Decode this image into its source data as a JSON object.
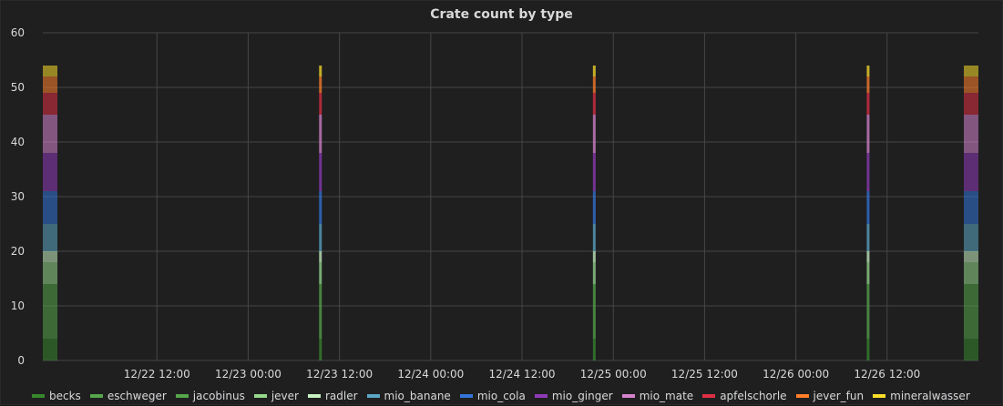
{
  "chart_data": {
    "type": "bar",
    "stacked": true,
    "title": "Crate count by type",
    "xlabel": "",
    "ylabel": "",
    "ylim": [
      0,
      60
    ],
    "y_ticks": [
      0,
      10,
      20,
      30,
      40,
      50,
      60
    ],
    "xlim": [
      "2020-12-21 21:00",
      "2020-12-27 00:00"
    ],
    "x_ticks": [
      {
        "t": "2020-12-22 12:00",
        "label": "12/22 12:00"
      },
      {
        "t": "2020-12-23 00:00",
        "label": "12/23 00:00"
      },
      {
        "t": "2020-12-23 12:00",
        "label": "12/23 12:00"
      },
      {
        "t": "2020-12-24 00:00",
        "label": "12/24 00:00"
      },
      {
        "t": "2020-12-24 12:00",
        "label": "12/24 12:00"
      },
      {
        "t": "2020-12-25 00:00",
        "label": "12/25 00:00"
      },
      {
        "t": "2020-12-25 12:00",
        "label": "12/25 12:00"
      },
      {
        "t": "2020-12-26 00:00",
        "label": "12/26 00:00"
      },
      {
        "t": "2020-12-26 12:00",
        "label": "12/26 12:00"
      }
    ],
    "grid": true,
    "legend_position": "bottom",
    "x": [
      "2020-12-21 21:30",
      "2020-12-23 09:30",
      "2020-12-24 21:30",
      "2020-12-26 09:30",
      "2020-12-26 23:30"
    ],
    "series": [
      {
        "name": "becks",
        "color": "#37872d",
        "values": [
          4,
          4,
          4,
          4,
          4
        ]
      },
      {
        "name": "eschweger",
        "color": "#56a64b",
        "values": [
          5,
          5,
          5,
          5,
          5
        ]
      },
      {
        "name": "jacobinus",
        "color": "#56a64b",
        "values": [
          5,
          5,
          5,
          5,
          5
        ]
      },
      {
        "name": "jever",
        "color": "#96d98d",
        "values": [
          4,
          4,
          4,
          4,
          4
        ]
      },
      {
        "name": "radler",
        "color": "#c8f2c2",
        "values": [
          2,
          2,
          2,
          2,
          2
        ]
      },
      {
        "name": "mio_banane",
        "color": "#5ba7c5",
        "values": [
          5,
          5,
          5,
          5,
          5
        ]
      },
      {
        "name": "mio_cola",
        "color": "#3274d9",
        "values": [
          6,
          6,
          6,
          6,
          6
        ]
      },
      {
        "name": "mio_ginger",
        "color": "#8f3bb8",
        "values": [
          7,
          7,
          7,
          7,
          7
        ]
      },
      {
        "name": "mio_mate",
        "color": "#d683ce",
        "values": [
          7,
          7,
          7,
          7,
          7
        ]
      },
      {
        "name": "apfelschorle",
        "color": "#e02f44",
        "values": [
          4,
          4,
          4,
          4,
          4
        ]
      },
      {
        "name": "jever_fun",
        "color": "#ff7f2a",
        "values": [
          3,
          3,
          3,
          3,
          3
        ]
      },
      {
        "name": "mineralwasser",
        "color": "#fade2a",
        "values": [
          2,
          2,
          2,
          2,
          2
        ]
      }
    ]
  }
}
